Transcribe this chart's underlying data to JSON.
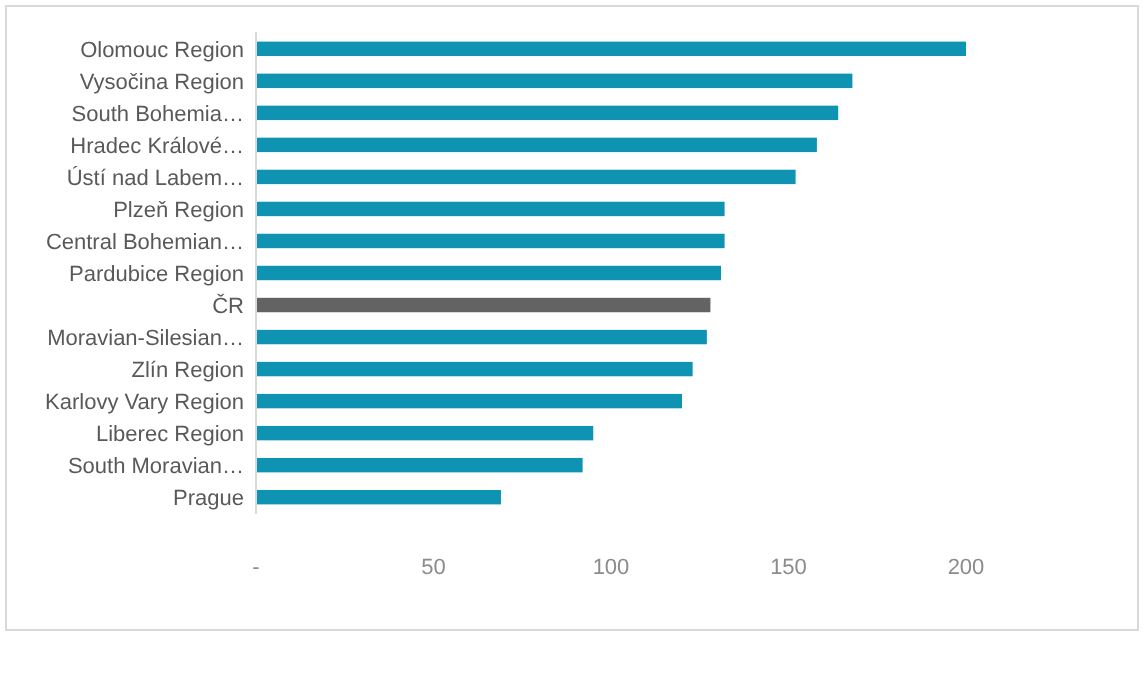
{
  "chart_data": {
    "type": "bar",
    "orientation": "horizontal",
    "categories": [
      "Olomouc Region",
      "Vysočina Region",
      "South Bohemia…",
      "Hradec Králové…",
      "Ústí nad Labem…",
      "Plzeň Region",
      "Central Bohemian…",
      "Pardubice Region",
      "ČR",
      "Moravian-Silesian…",
      "Zlín Region",
      "Karlovy Vary Region",
      "Liberec Region",
      "South Moravian…",
      "Prague"
    ],
    "values": [
      200,
      168,
      164,
      158,
      152,
      132,
      132,
      131,
      128,
      127,
      123,
      120,
      95,
      92,
      69
    ],
    "colors": [
      "#0e93b3",
      "#0e93b3",
      "#0e93b3",
      "#0e93b3",
      "#0e93b3",
      "#0e93b3",
      "#0e93b3",
      "#0e93b3",
      "#636363",
      "#0e93b3",
      "#0e93b3",
      "#0e93b3",
      "#0e93b3",
      "#0e93b3",
      "#0e93b3"
    ],
    "xlim": [
      0,
      200
    ],
    "xticks": [
      {
        "value": 0,
        "label": "-"
      },
      50,
      100,
      150,
      200
    ],
    "grid": false
  }
}
